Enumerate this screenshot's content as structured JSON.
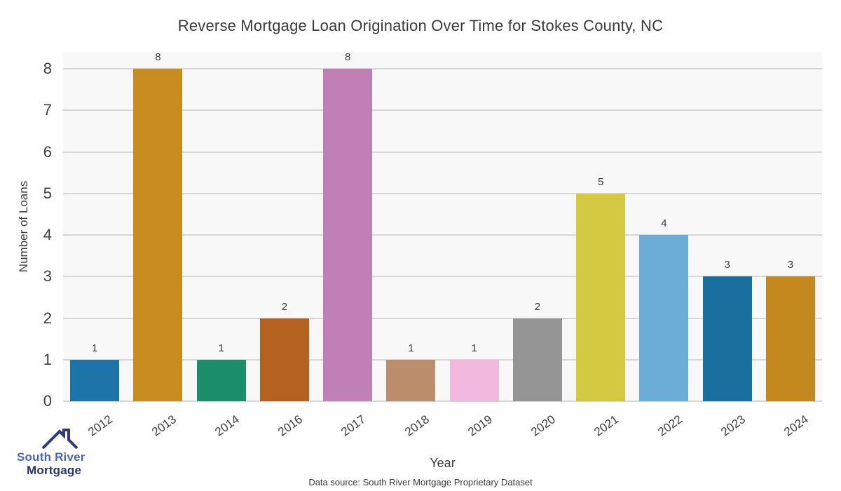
{
  "title": "Reverse Mortgage Loan Origination Over Time for Stokes County, NC",
  "footer": {
    "data_source": "Data source: South River Mortgage Proprietary Dataset"
  },
  "logo": {
    "line1": "South River",
    "line2": "Mortgage",
    "icon": "house-roof-icon",
    "color_primary": "#4b67ae",
    "color_secondary": "#2a3170",
    "color_roof": "#2e3a7c"
  },
  "chart_data": {
    "type": "bar",
    "title": "Reverse Mortgage Loan Origination Over Time for Stokes County, NC",
    "xlabel": "Year",
    "ylabel": "Number of Loans",
    "categories": [
      "2012",
      "2013",
      "2014",
      "2016",
      "2017",
      "2018",
      "2019",
      "2020",
      "2021",
      "2022",
      "2023",
      "2024"
    ],
    "values": [
      1,
      8,
      1,
      2,
      8,
      1,
      1,
      2,
      5,
      4,
      3,
      3
    ],
    "bar_colors": [
      "#1d74a9",
      "#c88c20",
      "#1b8e69",
      "#b5611f",
      "#c080b6",
      "#bd8e6b",
      "#f2b8de",
      "#959595",
      "#d3ca41",
      "#6badd6",
      "#196f9e",
      "#c3881e"
    ],
    "value_labels": [
      1,
      8,
      1,
      2,
      8,
      1,
      1,
      2,
      5,
      4,
      3,
      3
    ],
    "yticks": [
      0,
      1,
      2,
      3,
      4,
      5,
      6,
      7,
      8
    ],
    "ylim": [
      0,
      8.4
    ],
    "grid": "horizontal",
    "legend": "none",
    "plot_background": "#f8f8f8",
    "gridline_color": "#d6d6d6"
  }
}
